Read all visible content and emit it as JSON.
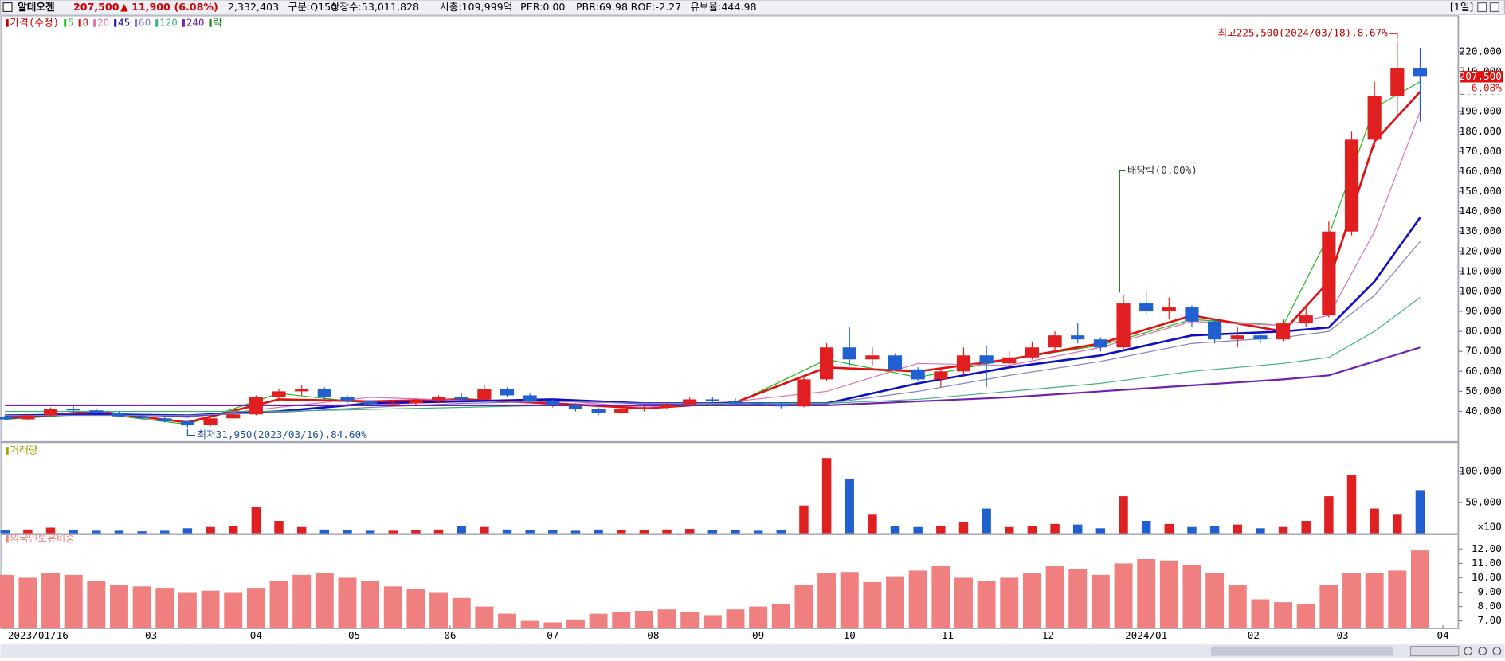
{
  "header": {
    "name": "알테오젠",
    "price": "207,500",
    "change": "▲ 11,900",
    "change_pct": "(6.08%)",
    "volume": "2,332,403",
    "market": "구분:Q150",
    "shares": "상장수:53,011,828",
    "cap": "시총:109,999억",
    "per": "PER:0.00",
    "pbr": "PBR:69.98",
    "roe": "ROE:-2.27",
    "reserve": "유보율:444.98",
    "period": "[1일]"
  },
  "x_axis": {
    "xlim": [
      -0.2,
      63.6
    ],
    "xticks": [
      {
        "value": 0,
        "label": "2023/01/16"
      },
      {
        "value": 6.4,
        "label": "03"
      },
      {
        "value": 11,
        "label": "04"
      },
      {
        "value": 15.3,
        "label": "05"
      },
      {
        "value": 19.5,
        "label": "06"
      },
      {
        "value": 24,
        "label": "07"
      },
      {
        "value": 28.4,
        "label": "08"
      },
      {
        "value": 33,
        "label": "09"
      },
      {
        "value": 37,
        "label": "10"
      },
      {
        "value": 41.3,
        "label": "11"
      },
      {
        "value": 45.7,
        "label": "12"
      },
      {
        "value": 50,
        "label": "2024/01"
      },
      {
        "value": 54.7,
        "label": "02"
      },
      {
        "value": 58.6,
        "label": "03"
      },
      {
        "value": 63,
        "label": "04"
      }
    ]
  },
  "chart_data": [
    {
      "type": "candlestick",
      "name": "가격(수정)",
      "color": "#d00000",
      "up_color": "#e02020",
      "down_color": "#2060d0",
      "ylim": [
        25100,
        236300
      ],
      "yticks": [
        {
          "value": 40000,
          "label": "40,000"
        },
        {
          "value": 50000,
          "label": "50,000"
        },
        {
          "value": 60000,
          "label": "60,000"
        },
        {
          "value": 70000,
          "label": "70,000"
        },
        {
          "value": 80000,
          "label": "80,000"
        },
        {
          "value": 90000,
          "label": "90,000"
        },
        {
          "value": 100000,
          "label": "100,000"
        },
        {
          "value": 110000,
          "label": "110,000"
        },
        {
          "value": 120000,
          "label": "120,000"
        },
        {
          "value": 130000,
          "label": "130,000"
        },
        {
          "value": 140000,
          "label": "140,000"
        },
        {
          "value": 150000,
          "label": "150,000"
        },
        {
          "value": 160000,
          "label": "160,000"
        },
        {
          "value": 170000,
          "label": "170,000"
        },
        {
          "value": 180000,
          "label": "180,000"
        },
        {
          "value": 190000,
          "label": "190,000"
        },
        {
          "value": 200000,
          "label": "200,000"
        },
        {
          "value": 210000,
          "label": "210,000"
        },
        {
          "value": 220000,
          "label": "220,000"
        }
      ],
      "candles": [
        [
          37000,
          38000,
          35500,
          36000
        ],
        [
          36000,
          38500,
          35500,
          38000
        ],
        [
          38000,
          42000,
          37500,
          41000
        ],
        [
          41000,
          42500,
          39500,
          40500
        ],
        [
          40500,
          41500,
          38500,
          39000
        ],
        [
          39000,
          40000,
          37000,
          37500
        ],
        [
          37500,
          38500,
          36000,
          36500
        ],
        [
          36500,
          37500,
          34500,
          35000
        ],
        [
          35000,
          35500,
          31950,
          33000
        ],
        [
          33000,
          37000,
          32500,
          36500
        ],
        [
          36500,
          39000,
          36000,
          38500
        ],
        [
          38500,
          48000,
          38000,
          47000
        ],
        [
          47000,
          51000,
          46000,
          50000
        ],
        [
          50000,
          53000,
          48000,
          51000
        ],
        [
          51000,
          52000,
          46000,
          47000
        ],
        [
          47000,
          48000,
          44000,
          45000
        ],
        [
          45000,
          46000,
          42000,
          43500
        ],
        [
          43500,
          45000,
          42500,
          44000
        ],
        [
          44000,
          46500,
          43000,
          45000
        ],
        [
          45000,
          48000,
          44000,
          47000
        ],
        [
          47000,
          49000,
          45000,
          46000
        ],
        [
          46000,
          53000,
          45500,
          51000
        ],
        [
          51000,
          52000,
          47000,
          48000
        ],
        [
          48000,
          49000,
          44000,
          45000
        ],
        [
          45000,
          46000,
          42000,
          43000
        ],
        [
          43000,
          44000,
          40000,
          41000
        ],
        [
          41000,
          42000,
          38000,
          39000
        ],
        [
          39000,
          42000,
          38500,
          41000
        ],
        [
          41000,
          43000,
          40000,
          42000
        ],
        [
          42000,
          44000,
          41000,
          43500
        ],
        [
          43500,
          47000,
          43000,
          46000
        ],
        [
          46000,
          47000,
          44000,
          45000
        ],
        [
          45000,
          46500,
          43500,
          44000
        ],
        [
          44000,
          45500,
          42500,
          43000
        ],
        [
          43000,
          44000,
          41500,
          42500
        ],
        [
          42500,
          58000,
          42000,
          56000
        ],
        [
          56000,
          74000,
          55000,
          72000
        ],
        [
          72000,
          82000,
          63000,
          66000
        ],
        [
          66000,
          72000,
          63000,
          68000
        ],
        [
          68000,
          69000,
          60000,
          61000
        ],
        [
          61000,
          62000,
          55000,
          56000
        ],
        [
          56000,
          62000,
          52000,
          60000
        ],
        [
          60000,
          72000,
          58000,
          68000
        ],
        [
          68000,
          73000,
          52000,
          64000
        ],
        [
          64000,
          70000,
          62000,
          67000
        ],
        [
          67000,
          75000,
          66000,
          72000
        ],
        [
          72000,
          80000,
          70000,
          78000
        ],
        [
          78000,
          84000,
          74000,
          76000
        ],
        [
          76000,
          77000,
          70000,
          72000
        ],
        [
          72000,
          98000,
          71000,
          94000
        ],
        [
          94000,
          100000,
          88000,
          90000
        ],
        [
          90000,
          97000,
          86000,
          92000
        ],
        [
          92000,
          93000,
          82000,
          85000
        ],
        [
          85000,
          86000,
          74000,
          76000
        ],
        [
          76000,
          82000,
          72000,
          78000
        ],
        [
          78000,
          80000,
          74000,
          76000
        ],
        [
          76000,
          86000,
          75000,
          84000
        ],
        [
          84000,
          92000,
          82000,
          88000
        ],
        [
          88000,
          135000,
          87000,
          130000
        ],
        [
          130000,
          180000,
          128000,
          176000
        ],
        [
          176000,
          205000,
          172000,
          198000
        ],
        [
          198000,
          225500,
          188000,
          212000
        ],
        [
          212000,
          222000,
          185000,
          207500
        ]
      ],
      "series": [
        {
          "name": "5",
          "color": "#22bb22",
          "width": 1,
          "x": [
            0,
            4,
            8,
            12,
            16,
            20,
            24,
            28,
            32,
            36,
            40,
            44,
            48,
            52,
            56,
            58,
            60,
            62
          ],
          "values": [
            36000,
            39000,
            33500,
            49000,
            44000,
            46500,
            43500,
            42000,
            44000,
            66000,
            57000,
            66000,
            73000,
            86000,
            83000,
            128000,
            192000,
            205000
          ]
        },
        {
          "name": "8",
          "color": "#e01010",
          "width": 2.2,
          "x": [
            0,
            4,
            8,
            12,
            16,
            20,
            24,
            28,
            32,
            36,
            40,
            44,
            48,
            52,
            56,
            58,
            60,
            62
          ],
          "values": [
            36500,
            40000,
            34500,
            46000,
            45000,
            46000,
            44000,
            41500,
            44500,
            62000,
            60000,
            66000,
            74000,
            88000,
            80000,
            105000,
            175000,
            200000
          ]
        },
        {
          "name": "20",
          "color": "#e070b0",
          "width": 1,
          "x": [
            0,
            4,
            8,
            12,
            16,
            20,
            24,
            28,
            32,
            36,
            40,
            44,
            48,
            52,
            56,
            58,
            60,
            62
          ],
          "values": [
            37000,
            39500,
            37000,
            42000,
            47000,
            45500,
            45500,
            42000,
            45000,
            50000,
            64000,
            63000,
            72000,
            85000,
            83000,
            88000,
            130000,
            190000
          ]
        },
        {
          "name": "45",
          "color": "#1010c0",
          "width": 2.2,
          "x": [
            0,
            4,
            8,
            12,
            16,
            20,
            24,
            28,
            32,
            36,
            40,
            44,
            48,
            52,
            56,
            58,
            60,
            62
          ],
          "values": [
            38000,
            38500,
            38000,
            40000,
            44000,
            45000,
            46000,
            44000,
            44000,
            44000,
            54000,
            62000,
            68000,
            78000,
            80000,
            82000,
            105000,
            137000
          ]
        },
        {
          "name": "60",
          "color": "#8080c0",
          "width": 1,
          "x": [
            0,
            4,
            8,
            12,
            16,
            20,
            24,
            28,
            32,
            36,
            40,
            44,
            48,
            52,
            56,
            58,
            60,
            62
          ],
          "values": [
            38000,
            38000,
            38000,
            39500,
            42000,
            44000,
            45000,
            44000,
            44000,
            44000,
            50000,
            58000,
            65000,
            74000,
            77000,
            80000,
            98000,
            125000
          ]
        },
        {
          "name": "120",
          "color": "#40b080",
          "width": 1,
          "x": [
            0,
            4,
            8,
            12,
            16,
            20,
            24,
            28,
            32,
            36,
            40,
            44,
            48,
            52,
            56,
            58,
            60,
            62
          ],
          "values": [
            40000,
            40000,
            40000,
            40000,
            41000,
            42000,
            43000,
            43000,
            44000,
            44000,
            46000,
            50000,
            54000,
            60000,
            64000,
            67000,
            80000,
            97000
          ]
        },
        {
          "name": "240",
          "color": "#7020b0",
          "width": 1.8,
          "x": [
            0,
            4,
            8,
            12,
            16,
            20,
            24,
            28,
            32,
            36,
            40,
            44,
            48,
            52,
            56,
            58,
            60,
            62
          ],
          "values": [
            43000,
            43000,
            43000,
            43000,
            43000,
            43000,
            43000,
            43000,
            43000,
            43000,
            45000,
            47000,
            50000,
            53000,
            56000,
            58000,
            65000,
            72000
          ]
        }
      ],
      "legend_extra": {
        "name": "락",
        "color": "#008000"
      },
      "annotations": {
        "high": "최고225,500(2024/03/18),8.67%",
        "low": "최저31,950(2023/03/16),84.60%",
        "dividend": "배당락(0.00%)"
      },
      "last_price_label": "207,500",
      "last_change_label": "6.08%"
    },
    {
      "type": "bar",
      "name": "거래량",
      "color": "#a0a000",
      "unit_label": "×100",
      "ylim": [
        0,
        134000
      ],
      "yticks": [
        {
          "value": 50000,
          "label": "50,000"
        },
        {
          "value": 100000,
          "label": "100,000"
        }
      ],
      "values": [
        5000,
        6000,
        9000,
        5000,
        4000,
        4000,
        3000,
        4000,
        8000,
        10000,
        12000,
        42000,
        20000,
        10000,
        6000,
        5000,
        4000,
        4000,
        5000,
        6000,
        12000,
        10000,
        6000,
        5000,
        5000,
        4000,
        6000,
        5000,
        5000,
        6000,
        7000,
        5000,
        5000,
        4000,
        5000,
        45000,
        122000,
        88000,
        30000,
        12000,
        10000,
        12000,
        18000,
        40000,
        10000,
        12000,
        15000,
        14000,
        8000,
        60000,
        20000,
        15000,
        10000,
        12000,
        14000,
        8000,
        10000,
        20000,
        60000,
        95000,
        40000,
        30000,
        70000
      ]
    },
    {
      "type": "bar",
      "name": "외국인보유비중",
      "color": "#f08080",
      "ylim": [
        6.5,
        12.7
      ],
      "yticks": [
        {
          "value": 7,
          "label": "7.00"
        },
        {
          "value": 8,
          "label": "8.00"
        },
        {
          "value": 9,
          "label": "9.00"
        },
        {
          "value": 10,
          "label": "10.00"
        },
        {
          "value": 11,
          "label": "11.00"
        },
        {
          "value": 12,
          "label": "12.00"
        }
      ],
      "values": [
        10.2,
        10.0,
        10.3,
        10.2,
        9.8,
        9.5,
        9.4,
        9.3,
        9.0,
        9.1,
        9.0,
        9.3,
        9.8,
        10.2,
        10.3,
        10.0,
        9.8,
        9.4,
        9.2,
        9.0,
        8.6,
        8.0,
        7.5,
        7.0,
        6.9,
        7.1,
        7.5,
        7.6,
        7.7,
        7.8,
        7.6,
        7.4,
        7.8,
        8.0,
        8.2,
        9.5,
        10.3,
        10.4,
        9.7,
        10.1,
        10.5,
        10.8,
        10.0,
        9.8,
        10.0,
        10.3,
        10.8,
        10.6,
        10.2,
        11.0,
        11.3,
        11.2,
        10.9,
        10.3,
        9.5,
        8.5,
        8.3,
        8.2,
        9.5,
        10.3,
        10.3,
        10.5,
        11.9
      ]
    }
  ]
}
